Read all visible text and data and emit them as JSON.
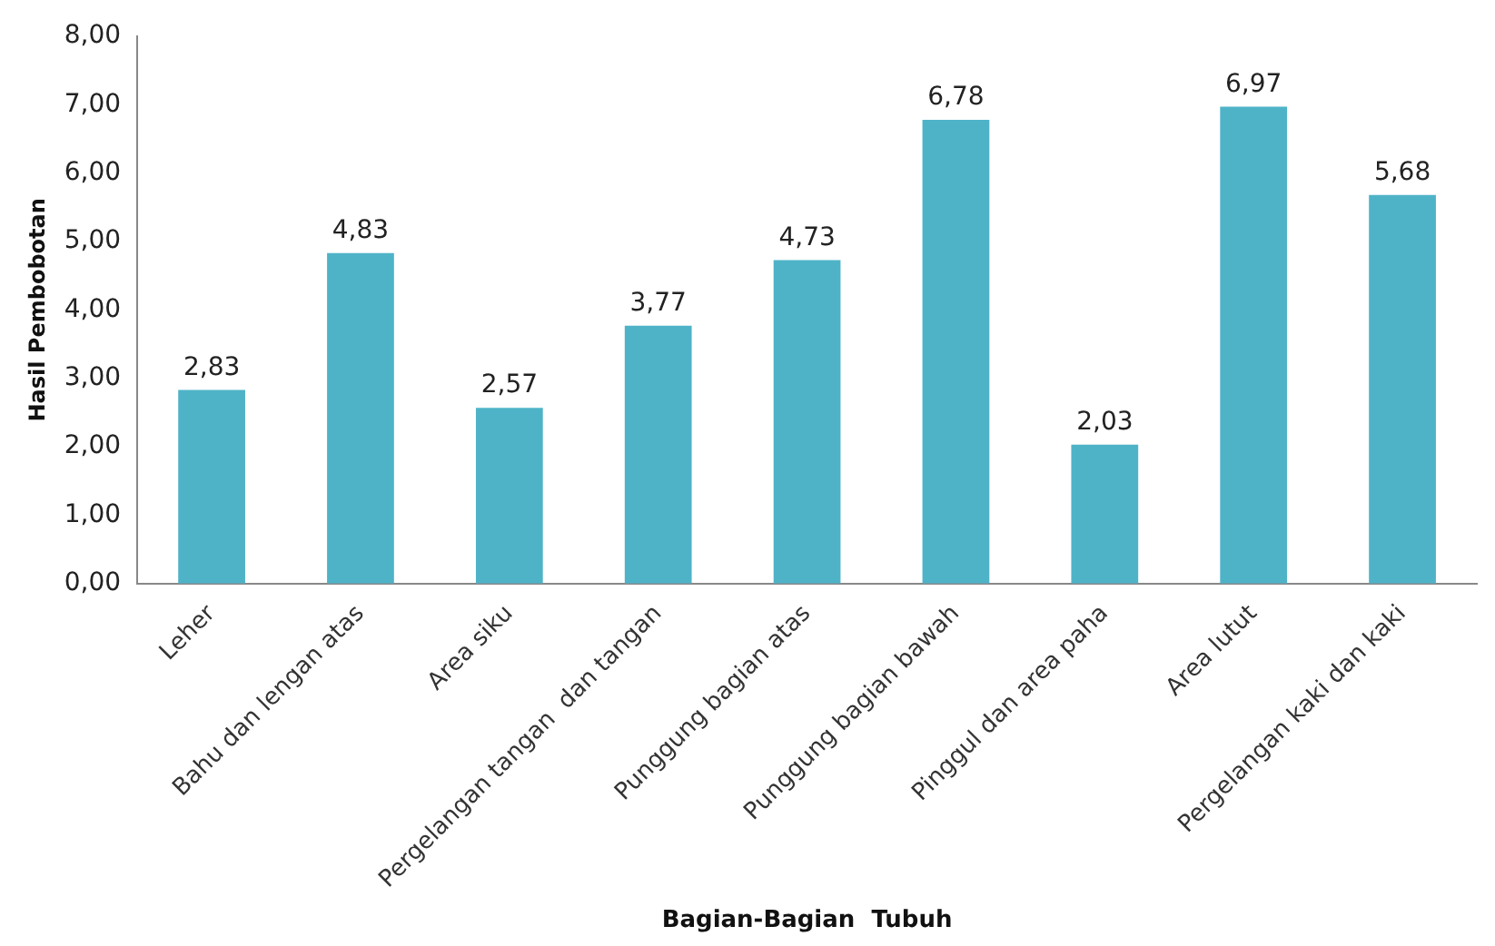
{
  "chart_data": {
    "type": "bar",
    "xlabel": "Bagian-Bagian  Tubuh",
    "ylabel": "Hasil Pembobotan",
    "categories": [
      "Leher",
      "Bahu dan lengan atas",
      "Area siku",
      "Pergelangan tangan  dan tangan",
      "Punggung bagian atas",
      "Punggung bagian bawah",
      "Pinggul dan area paha",
      "Area lutut",
      "Pergelangan kaki dan kaki"
    ],
    "values": [
      2.83,
      4.83,
      2.57,
      3.77,
      4.73,
      6.78,
      2.03,
      6.97,
      5.68
    ],
    "value_labels": [
      "2,83",
      "4,83",
      "2,57",
      "3,77",
      "4,73",
      "6,78",
      "2,03",
      "6,97",
      "5,68"
    ],
    "color": "#4fb3c8",
    "ylim": [
      0,
      8
    ],
    "yticks": [
      {
        "value": 0,
        "label": "0,00"
      },
      {
        "value": 1,
        "label": "1,00"
      },
      {
        "value": 2,
        "label": "2,00"
      },
      {
        "value": 3,
        "label": "3,00"
      },
      {
        "value": 4,
        "label": "4,00"
      },
      {
        "value": 5,
        "label": "5,00"
      },
      {
        "value": 6,
        "label": "6,00"
      },
      {
        "value": 7,
        "label": "7,00"
      },
      {
        "value": 8,
        "label": "8,00"
      }
    ],
    "grid": false,
    "legend": false
  }
}
